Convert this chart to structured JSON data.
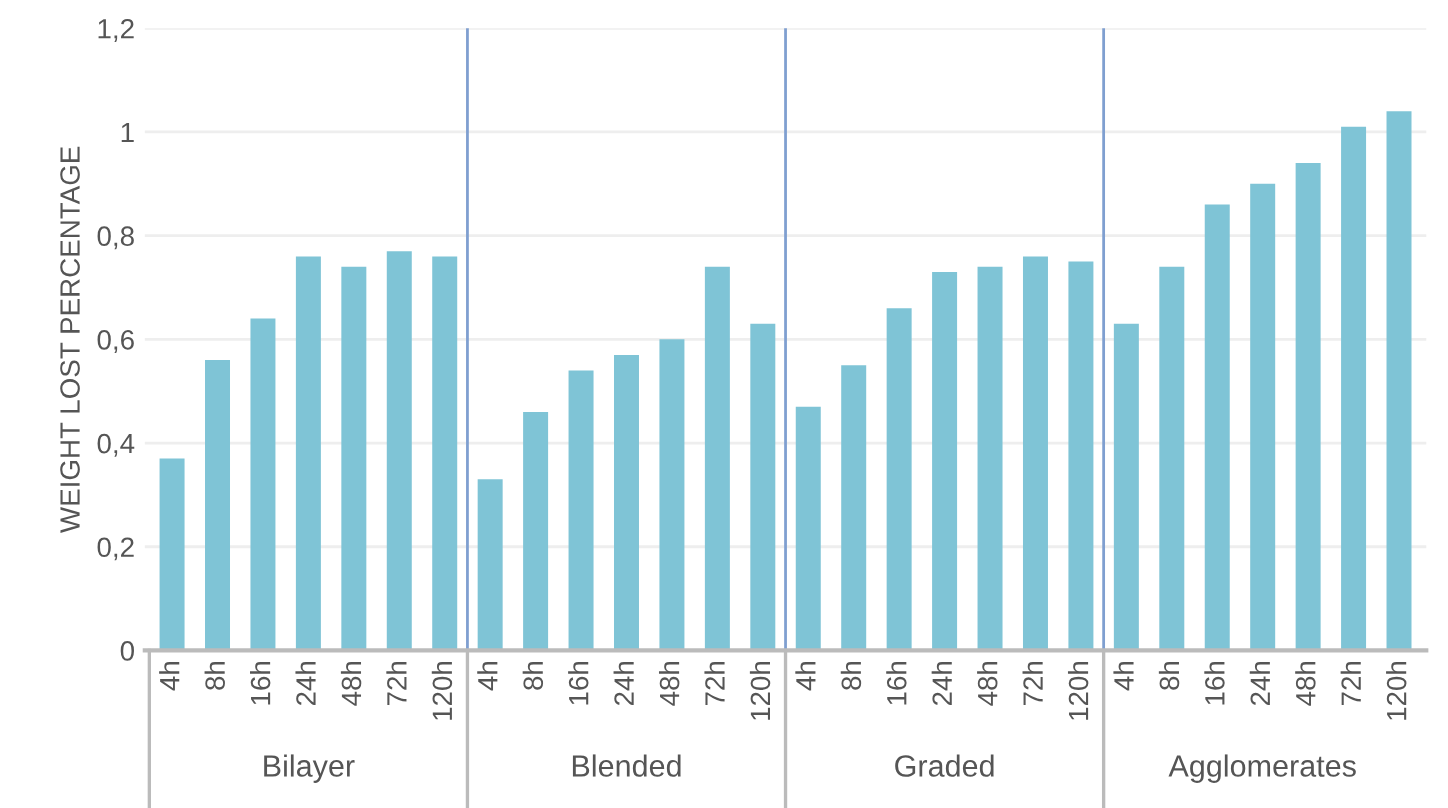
{
  "chart_data": {
    "type": "bar",
    "ylabel": "WEIGHT LOST PERCENTAGE",
    "categories": [
      "4h",
      "8h",
      "16h",
      "24h",
      "48h",
      "72h",
      "120h",
      "4h",
      "8h",
      "16h",
      "24h",
      "48h",
      "72h",
      "120h",
      "4h",
      "8h",
      "16h",
      "24h",
      "48h",
      "72h",
      "120h",
      "4h",
      "8h",
      "16h",
      "24h",
      "48h",
      "72h",
      "120h"
    ],
    "values": [
      0.37,
      0.56,
      0.64,
      0.76,
      0.74,
      0.77,
      0.76,
      0.33,
      0.46,
      0.54,
      0.57,
      0.6,
      0.74,
      0.63,
      0.47,
      0.55,
      0.66,
      0.73,
      0.74,
      0.76,
      0.75,
      0.63,
      0.74,
      0.86,
      0.9,
      0.94,
      1.01,
      1.04
    ],
    "color": "#7fc4d6",
    "annotations": [
      "Bilayer",
      "Blended",
      "Graded",
      "Agglomerates"
    ],
    "ylim": [
      0,
      1.2
    ],
    "yticks": [
      0,
      {
        "value": 0.2,
        "label": "0,2"
      },
      {
        "value": 0.4,
        "label": "0,4"
      },
      {
        "value": 0.6,
        "label": "0,6"
      },
      {
        "value": 0.8,
        "label": "0,8"
      },
      1,
      {
        "value": 1.2,
        "label": "1,2"
      }
    ],
    "grid": "y"
  }
}
